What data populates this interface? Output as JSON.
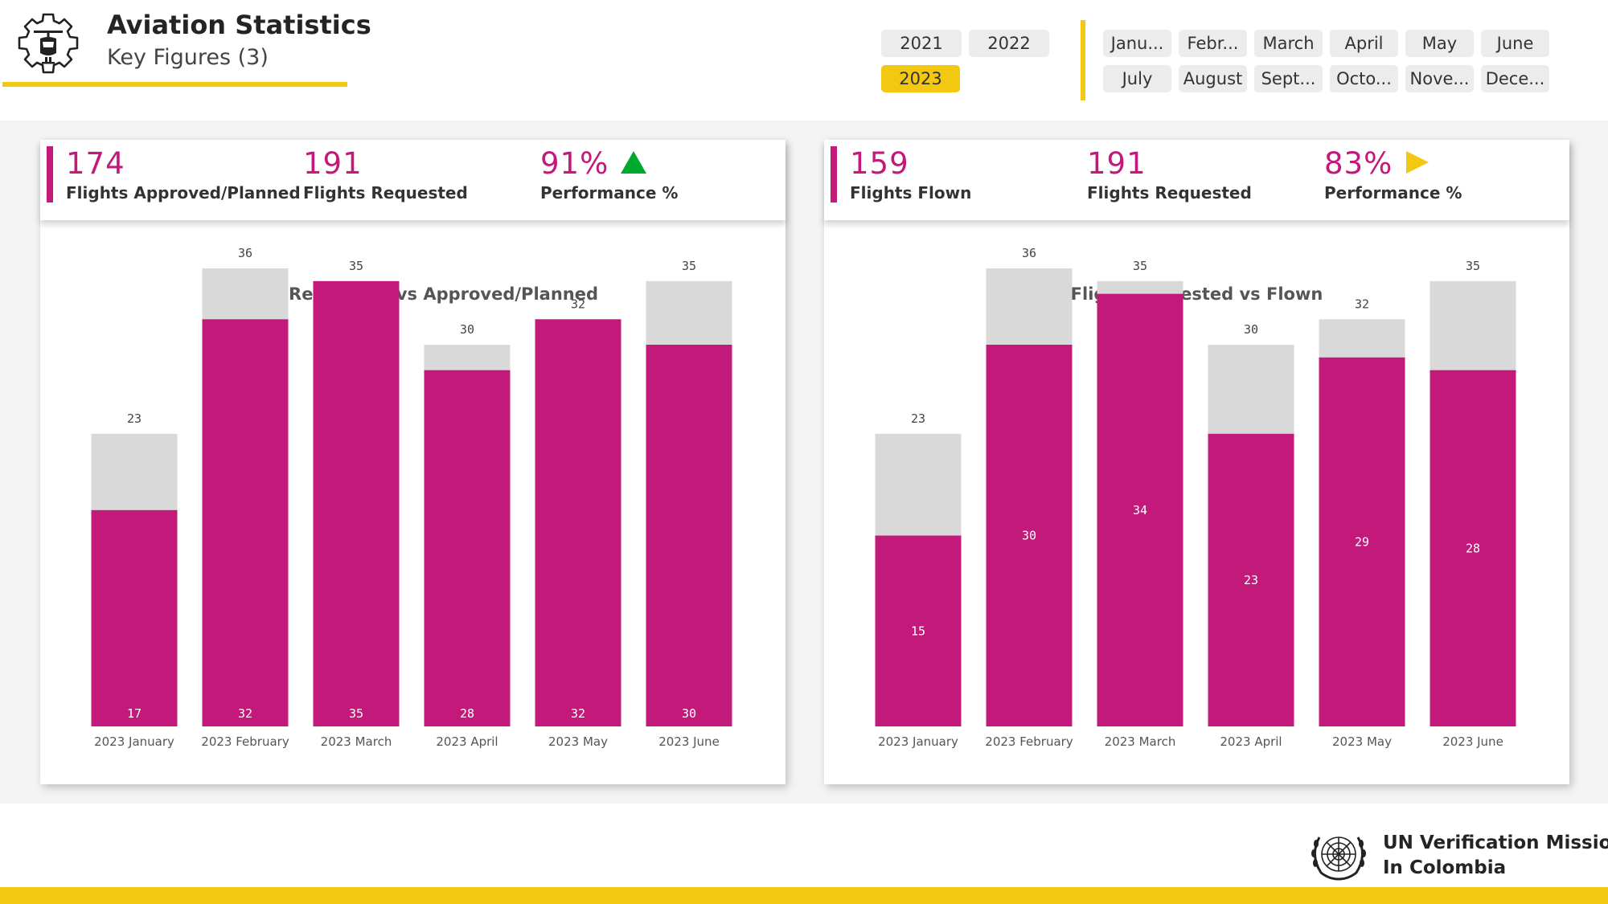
{
  "header": {
    "title": "Aviation Statistics",
    "subtitle": "Key Figures (3)",
    "logo_icon": "helicopter-gear-icon"
  },
  "year_slicer": {
    "options": [
      "2021",
      "2022",
      "2023"
    ],
    "selected": "2023"
  },
  "month_slicer": {
    "options": [
      "Janu...",
      "Febr...",
      "March",
      "April",
      "May",
      "June",
      "July",
      "August",
      "Sept...",
      "Octo...",
      "Nove...",
      "Dece..."
    ]
  },
  "colors": {
    "accent": "#C2197A",
    "bar_base": "#D9D9D9",
    "brand_yellow": "#F2C811",
    "up_arrow": "#00A82D",
    "neutral_arrow": "#F2C811"
  },
  "panel_left": {
    "kpis": [
      {
        "value": "174",
        "label": "Flights Approved/Planned"
      },
      {
        "value": "191",
        "label": "Flights Requested"
      },
      {
        "value": "91%",
        "label": "Performance %",
        "indicator": "up-triangle-icon"
      }
    ]
  },
  "panel_right": {
    "kpis": [
      {
        "value": "159",
        "label": "Flights Flown"
      },
      {
        "value": "191",
        "label": "Flights Requested"
      },
      {
        "value": "83%",
        "label": "Performance %",
        "indicator": "right-triangle-icon"
      }
    ]
  },
  "chart_data": [
    {
      "type": "bar",
      "title": "Flight Requested vs Approved/Planned",
      "categories": [
        "2023 January",
        "2023 February",
        "2023 March",
        "2023 April",
        "2023 May",
        "2023 June"
      ],
      "series": [
        {
          "name": "Flights Requested",
          "values": [
            23,
            36,
            35,
            30,
            32,
            35
          ]
        },
        {
          "name": "Flights Approved/Planned",
          "values": [
            17,
            32,
            35,
            28,
            32,
            30
          ]
        }
      ],
      "overlay": true,
      "ylim": [
        0,
        36
      ],
      "inner_label_position": "bottom",
      "grid": false,
      "legend": "none"
    },
    {
      "type": "bar",
      "title": "Flight Requested vs Flown",
      "categories": [
        "2023 January",
        "2023 February",
        "2023 March",
        "2023 April",
        "2023 May",
        "2023 June"
      ],
      "series": [
        {
          "name": "Flights Requested",
          "values": [
            23,
            36,
            35,
            30,
            32,
            35
          ]
        },
        {
          "name": "Flights Flown",
          "values": [
            15,
            30,
            34,
            23,
            29,
            28
          ]
        }
      ],
      "overlay": true,
      "ylim": [
        0,
        36
      ],
      "inner_label_position": "center",
      "grid": false,
      "legend": "none"
    }
  ],
  "footer": {
    "org_line1": "UN Verification Mission",
    "org_line2": "In Colombia",
    "emblem_icon": "un-emblem-icon"
  }
}
